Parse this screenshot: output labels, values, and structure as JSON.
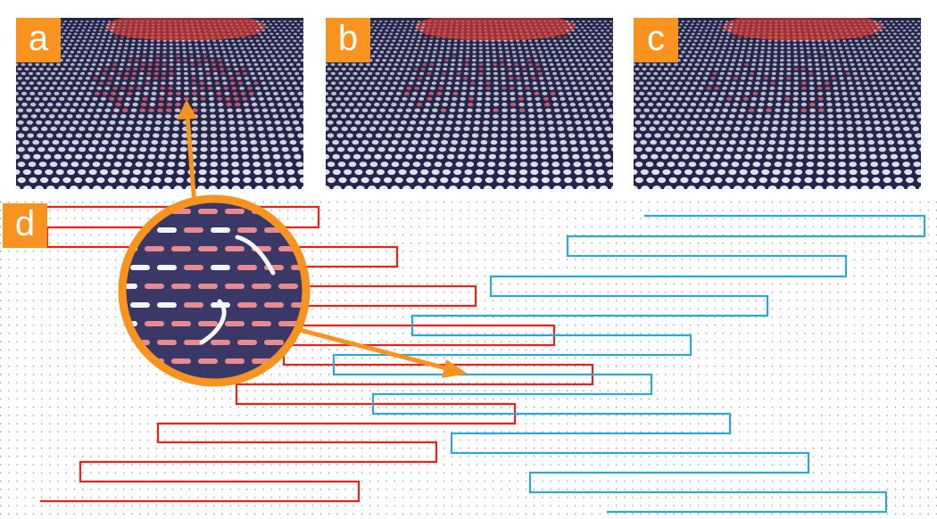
{
  "panels": [
    {
      "id": "a",
      "label": "a",
      "highlight": "#e86a78",
      "highlight_strength": 0.55
    },
    {
      "id": "b",
      "label": "b",
      "highlight": "#e86a78",
      "highlight_strength": 0.3
    },
    {
      "id": "c",
      "label": "c",
      "highlight": "#e86a78",
      "highlight_strength": 0.12
    }
  ],
  "diagram_label": "d",
  "colors": {
    "accent": "#f7931e",
    "red_path": "#e8231c",
    "blue_path": "#2aa8d8",
    "fabric": "#23264a",
    "grid_dot": "#9a9a9a"
  }
}
